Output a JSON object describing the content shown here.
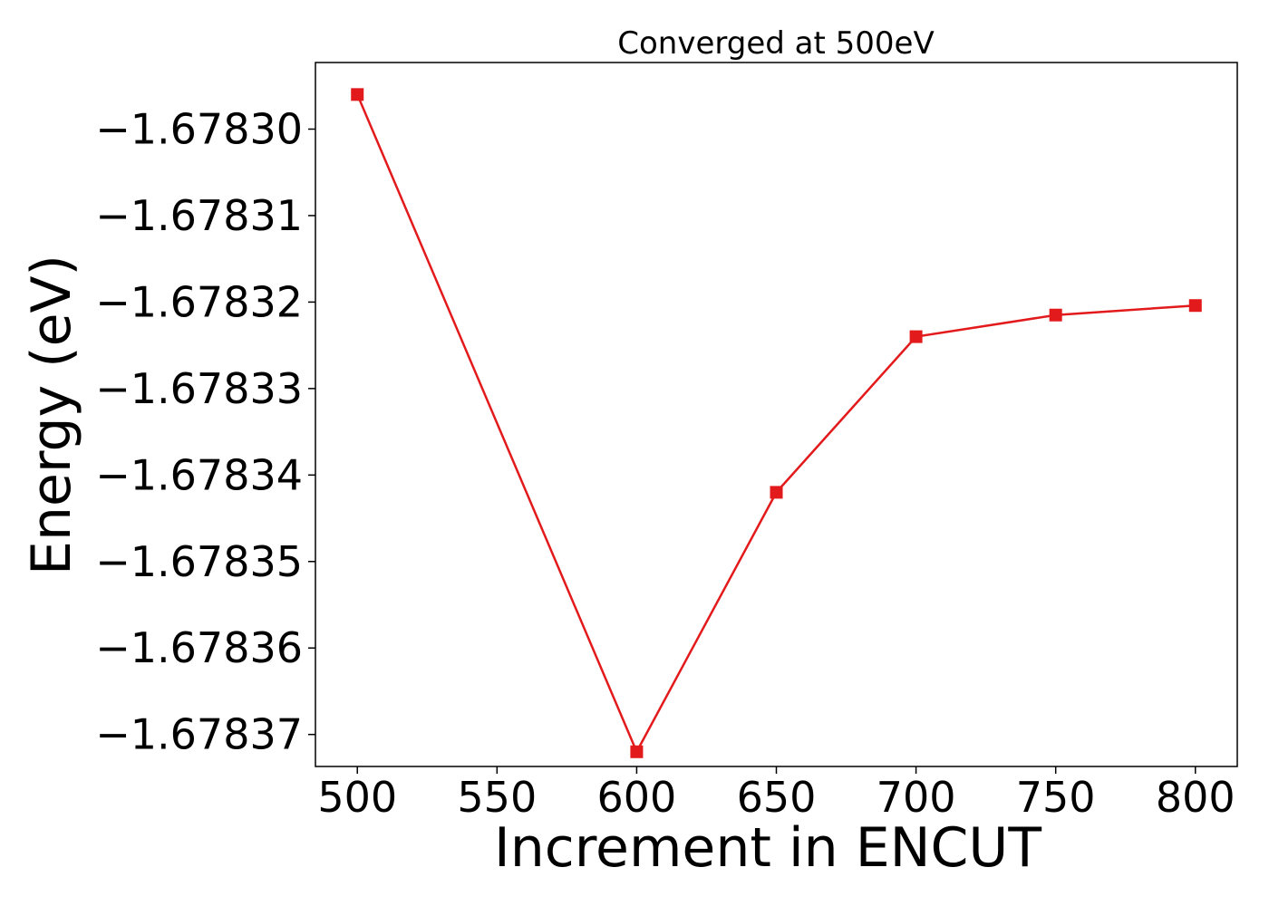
{
  "chart_data": {
    "type": "line",
    "title": "Converged at 500eV",
    "xlabel": "Increment in ENCUT",
    "ylabel": "Energy (eV)",
    "x": [
      500,
      600,
      650,
      700,
      750,
      800
    ],
    "series": [
      {
        "values": [
          -1.678296,
          -1.678372,
          -1.678342,
          -1.678324,
          -1.6783215,
          -1.6783204
        ],
        "color": "#e31a1c",
        "marker": "square"
      }
    ],
    "xticks": [
      500,
      550,
      600,
      650,
      700,
      750,
      800
    ],
    "xtick_labels": [
      "500",
      "550",
      "600",
      "650",
      "700",
      "750",
      "800"
    ],
    "yticks": [
      -1.6783,
      -1.67831,
      -1.67832,
      -1.67833,
      -1.67834,
      -1.67835,
      -1.67836,
      -1.67837
    ],
    "ytick_labels": [
      "−1.67830",
      "−1.67831",
      "−1.67832",
      "−1.67833",
      "−1.67834",
      "−1.67835",
      "−1.67836",
      "−1.67837"
    ],
    "xlim": [
      485,
      815
    ],
    "ylim": [
      -1.6783737,
      -1.6782923
    ],
    "grid": false,
    "legend": "none"
  }
}
